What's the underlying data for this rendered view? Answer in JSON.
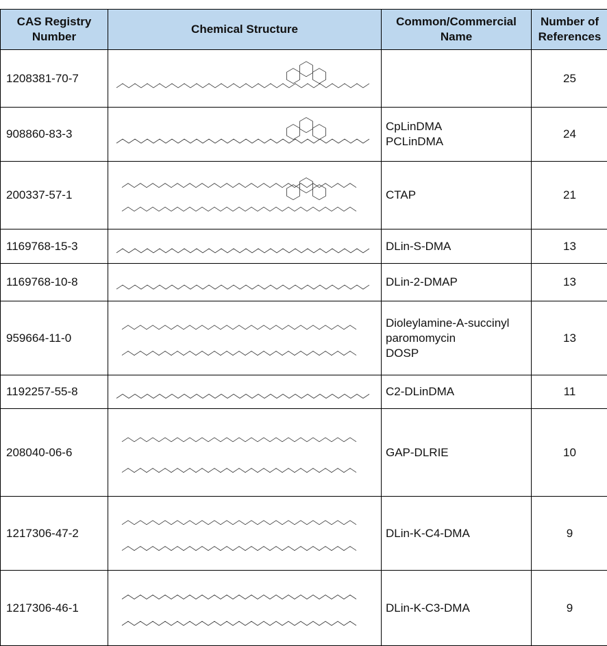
{
  "table": {
    "header": [
      "CAS Registry Number",
      "Chemical Structure",
      "Common/Commercial Name",
      "Number of References"
    ],
    "rows": [
      {
        "cas": "1208381-70-7",
        "names": null,
        "refs": 25
      },
      {
        "cas": "908860-83-3",
        "names": [
          "CpLinDMA",
          "PCLinDMA"
        ],
        "refs": 24
      },
      {
        "cas": "200337-57-1",
        "names": [
          "CTAP"
        ],
        "refs": 21
      },
      {
        "cas": "1169768-15-3",
        "names": [
          "DLin-S-DMA"
        ],
        "refs": 13
      },
      {
        "cas": "1169768-10-8",
        "names": [
          "DLin-2-DMAP"
        ],
        "refs": 13
      },
      {
        "cas": "959664-11-0",
        "names": [
          "Dioleylamine-A-succinyl paromomycin",
          "DOSP"
        ],
        "refs": 13
      },
      {
        "cas": "1192257-55-8",
        "names": [
          "C2-DLinDMA"
        ],
        "refs": 11
      },
      {
        "cas": "208040-06-6",
        "names": [
          "GAP-DLRIE"
        ],
        "refs": 10
      },
      {
        "cas": "1217306-47-2",
        "names": [
          "DLin-K-C4-DMA"
        ],
        "refs": 9
      },
      {
        "cas": "1217306-46-1",
        "names": [
          "DLin-K-C3-DMA"
        ],
        "refs": 9
      }
    ]
  }
}
